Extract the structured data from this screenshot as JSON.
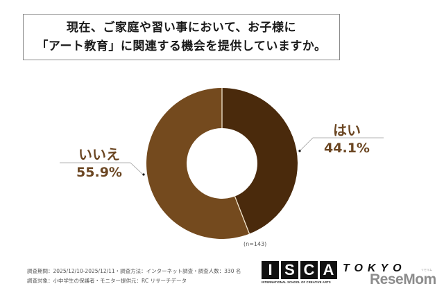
{
  "title": {
    "line1": "現在、ご家庭や習い事において、お子様に",
    "line2": "「アート教育」に関連する機会を提供していますか。"
  },
  "chart_data": {
    "type": "pie",
    "subtype": "donut",
    "title": "現在、ご家庭や習い事において、お子様に「アート教育」に関連する機会を提供していますか。",
    "categories": [
      "はい",
      "いいえ"
    ],
    "values": [
      44.1,
      55.9
    ],
    "unit": "%",
    "colors": [
      "#4a2a0c",
      "#744a1e"
    ],
    "sample_size": "n=143",
    "legend": "none (direct labels with leader lines)"
  },
  "labels": {
    "yes": {
      "name": "はい",
      "pct": "44.1%"
    },
    "no": {
      "name": "いいえ",
      "pct": "55.9%"
    }
  },
  "note": "(n=143)",
  "footer": {
    "line1": "調査期間：2025/12/10-2025/12/11・調査方法：インターネット調査・調査人数：330 名",
    "line2": "調査対象：小中学生の保護者・モニター提供元：RC リサーチデータ"
  },
  "logo": {
    "letters": [
      "I",
      "S",
      "C",
      "A"
    ],
    "tagline": "INTERNATIONAL SCHOOL OF CREATIVE ARTS",
    "city": "TOKYO"
  },
  "watermark": {
    "text": "ReseMom",
    "kana": "リセマム"
  },
  "colors": {
    "yes_slice": "#4a2a0c",
    "no_slice": "#744a1e",
    "label_text": "#6b4622",
    "separator": "#f3e6cf"
  }
}
